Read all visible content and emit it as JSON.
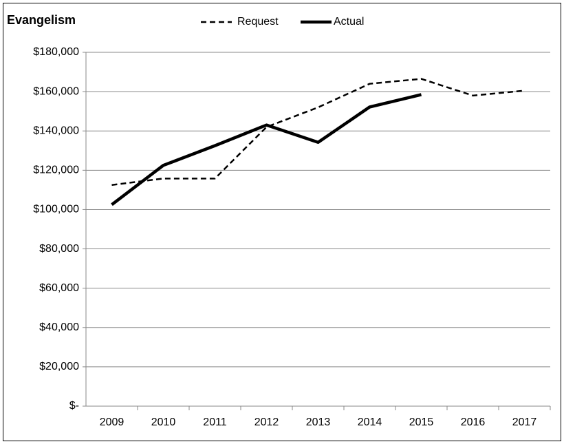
{
  "chart_data": {
    "type": "line",
    "title": "Evangelism",
    "categories": [
      "2009",
      "2010",
      "2011",
      "2012",
      "2013",
      "2014",
      "2015",
      "2016",
      "2017"
    ],
    "series": [
      {
        "name": "Request",
        "color": "#000000",
        "style": "dashed",
        "values": [
          112500,
          115800,
          115800,
          142000,
          152000,
          164000,
          166500,
          158000,
          160500
        ]
      },
      {
        "name": "Actual",
        "color": "#000000",
        "style": "solid",
        "values": [
          102500,
          122500,
          132500,
          143000,
          134200,
          152200,
          158500,
          null,
          null
        ]
      }
    ],
    "ylim": [
      0,
      180000
    ],
    "yticks": [
      {
        "value": 0,
        "label": "$-"
      },
      {
        "value": 20000,
        "label": "$20,000"
      },
      {
        "value": 40000,
        "label": "$40,000"
      },
      {
        "value": 60000,
        "label": "$60,000"
      },
      {
        "value": 80000,
        "label": "$80,000"
      },
      {
        "value": 100000,
        "label": "$100,000"
      },
      {
        "value": 120000,
        "label": "$120,000"
      },
      {
        "value": 140000,
        "label": "$140,000"
      },
      {
        "value": 160000,
        "label": "$160,000"
      },
      {
        "value": 180000,
        "label": "$180,000"
      }
    ],
    "grid": true,
    "legend": "top"
  }
}
